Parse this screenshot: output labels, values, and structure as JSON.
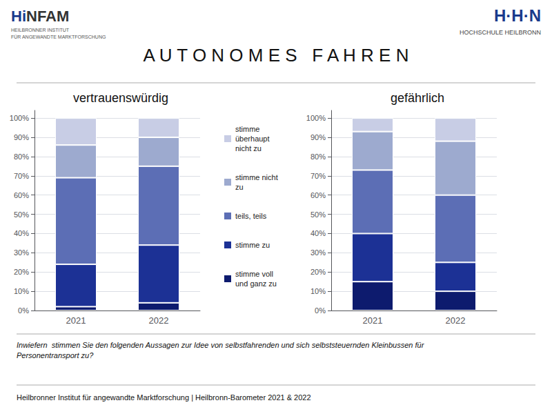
{
  "title": "A U T O N O M E S   F A H R E N",
  "annotations": [
    "Hi",
    "NFAM",
    "HEILBRONNER INSTITUT",
    "FÜR ANGEWANDTE MARKTFORSCHUNG",
    "H·H·N",
    "HOCHSCHULE HEILBRONN",
    "Inwiefern  stimmen Sie den folgenden Aussagen zur Idee von selbstfahrenden und sich selbststeuernden Kleinbussen für\nPersonentransport zu?",
    "Heilbronner Institut für angewandte Marktforschung | Heilbronn-Barometer 2021 & 2022"
  ],
  "chart_data": [
    {
      "type": "bar",
      "title": "vertrauenswürdig",
      "stacked": true,
      "grid": true,
      "legend": "center",
      "categories": [
        "2021",
        "2022"
      ],
      "ylim": [
        0,
        104
      ],
      "yticks": [
        {
          "value": 0,
          "label": "0%"
        },
        {
          "value": 10,
          "label": "10%"
        },
        {
          "value": 20,
          "label": "20%"
        },
        {
          "value": 30,
          "label": "30%"
        },
        {
          "value": 40,
          "label": "40%"
        },
        {
          "value": 50,
          "label": "50%"
        },
        {
          "value": 60,
          "label": "60%"
        },
        {
          "value": 70,
          "label": "70%"
        },
        {
          "value": 80,
          "label": "80%"
        },
        {
          "value": 90,
          "label": "90%"
        },
        {
          "value": 100,
          "label": "100%"
        }
      ],
      "series": [
        {
          "name": "stimme voll\nund ganz zu",
          "color": "#0d1b6e",
          "values": [
            2,
            4
          ]
        },
        {
          "name": "stimme zu",
          "color": "#1c3195",
          "values": [
            22,
            30
          ]
        },
        {
          "name": "teils, teils",
          "color": "#5c6eb5",
          "values": [
            45,
            41
          ]
        },
        {
          "name": "stimme nicht\nzu",
          "color": "#9daacf",
          "values": [
            17,
            15
          ]
        },
        {
          "name": "stimme\nüberhaupt\nnicht zu",
          "color": "#c8cde5",
          "values": [
            14,
            10
          ]
        }
      ]
    },
    {
      "type": "bar",
      "title": "gefährlich",
      "stacked": true,
      "grid": true,
      "legend": "center",
      "categories": [
        "2021",
        "2022"
      ],
      "ylim": [
        0,
        104
      ],
      "yticks": [
        {
          "value": 0,
          "label": "0%"
        },
        {
          "value": 10,
          "label": "10%"
        },
        {
          "value": 20,
          "label": "20%"
        },
        {
          "value": 30,
          "label": "30%"
        },
        {
          "value": 40,
          "label": "40%"
        },
        {
          "value": 50,
          "label": "50%"
        },
        {
          "value": 60,
          "label": "60%"
        },
        {
          "value": 70,
          "label": "70%"
        },
        {
          "value": 80,
          "label": "80%"
        },
        {
          "value": 90,
          "label": "90%"
        },
        {
          "value": 100,
          "label": "100%"
        }
      ],
      "series": [
        {
          "name": "stimme voll\nund ganz zu",
          "color": "#0d1b6e",
          "values": [
            15,
            10
          ]
        },
        {
          "name": "stimme zu",
          "color": "#1c3195",
          "values": [
            25,
            15
          ]
        },
        {
          "name": "teils, teils",
          "color": "#5c6eb5",
          "values": [
            33,
            35
          ]
        },
        {
          "name": "stimme nicht\nzu",
          "color": "#9daacf",
          "values": [
            20,
            28
          ]
        },
        {
          "name": "stimme\nüberhaupt\nnicht zu",
          "color": "#c8cde5",
          "values": [
            7,
            12
          ]
        }
      ]
    }
  ]
}
